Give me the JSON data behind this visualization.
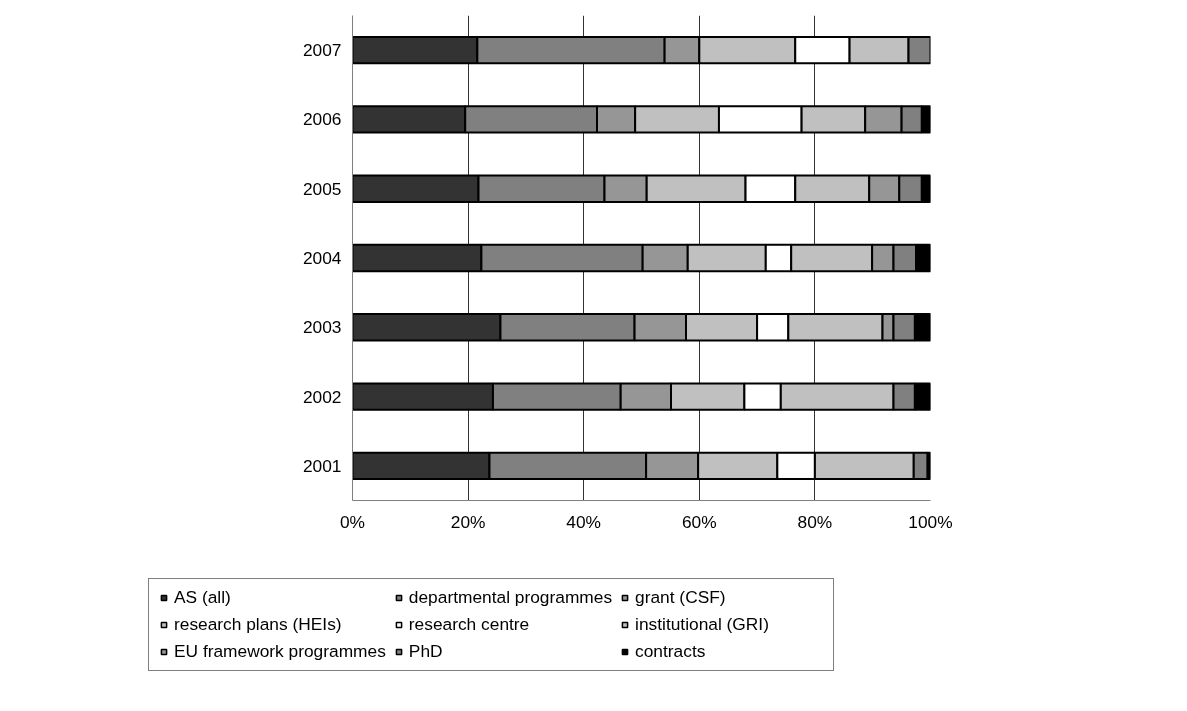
{
  "chart_data": {
    "type": "bar",
    "orientation": "horizontal",
    "stacked": true,
    "categories": [
      "2007",
      "2006",
      "2005",
      "2004",
      "2003",
      "2002",
      "2001"
    ],
    "series": [
      {
        "name": "AS (all)",
        "color": "#333333",
        "values": [
          21.6,
          19.5,
          21.8,
          22.3,
          25.6,
          24.3,
          23.7
        ]
      },
      {
        "name": "departmental programmes",
        "color": "#808080",
        "values": [
          32.4,
          22.8,
          21.8,
          27.9,
          23.2,
          22.1,
          27.1
        ]
      },
      {
        "name": "grant (CSF)",
        "color": "#969696",
        "values": [
          6.0,
          6.6,
          7.3,
          7.8,
          8.9,
          8.7,
          9.0
        ]
      },
      {
        "name": "research plans (HEIs)",
        "color": "#c0c0c0",
        "values": [
          16.6,
          14.5,
          17.1,
          13.5,
          12.3,
          12.7,
          13.7
        ]
      },
      {
        "name": "research centre",
        "color": "#ffffff",
        "values": [
          9.4,
          14.3,
          8.6,
          4.4,
          5.4,
          6.3,
          6.5
        ]
      },
      {
        "name": "institutional (GRI)",
        "color": "#c0c0c0",
        "values": [
          10.2,
          11.0,
          12.8,
          14.0,
          16.3,
          19.5,
          17.1
        ]
      },
      {
        "name": "EU framework programmes",
        "color": "#969696",
        "values": [
          null,
          6.3,
          5.2,
          3.7,
          1.9,
          null,
          null
        ]
      },
      {
        "name": "PhD",
        "color": "#808080",
        "values": [
          3.8,
          3.5,
          3.9,
          3.9,
          3.7,
          3.7,
          2.4
        ]
      },
      {
        "name": "contracts",
        "color": "#000000",
        "values": [
          null,
          1.5,
          1.5,
          2.5,
          2.7,
          2.7,
          0.5
        ]
      }
    ],
    "xlim": [
      0,
      100
    ],
    "xticks": [
      {
        "value": 0,
        "label": "0%"
      },
      {
        "value": 20,
        "label": "20%"
      },
      {
        "value": 40,
        "label": "40%"
      },
      {
        "value": 60,
        "label": "60%"
      },
      {
        "value": 80,
        "label": "80%"
      },
      {
        "value": 100,
        "label": "100%"
      }
    ],
    "grid": "x",
    "legend": "bottom"
  }
}
